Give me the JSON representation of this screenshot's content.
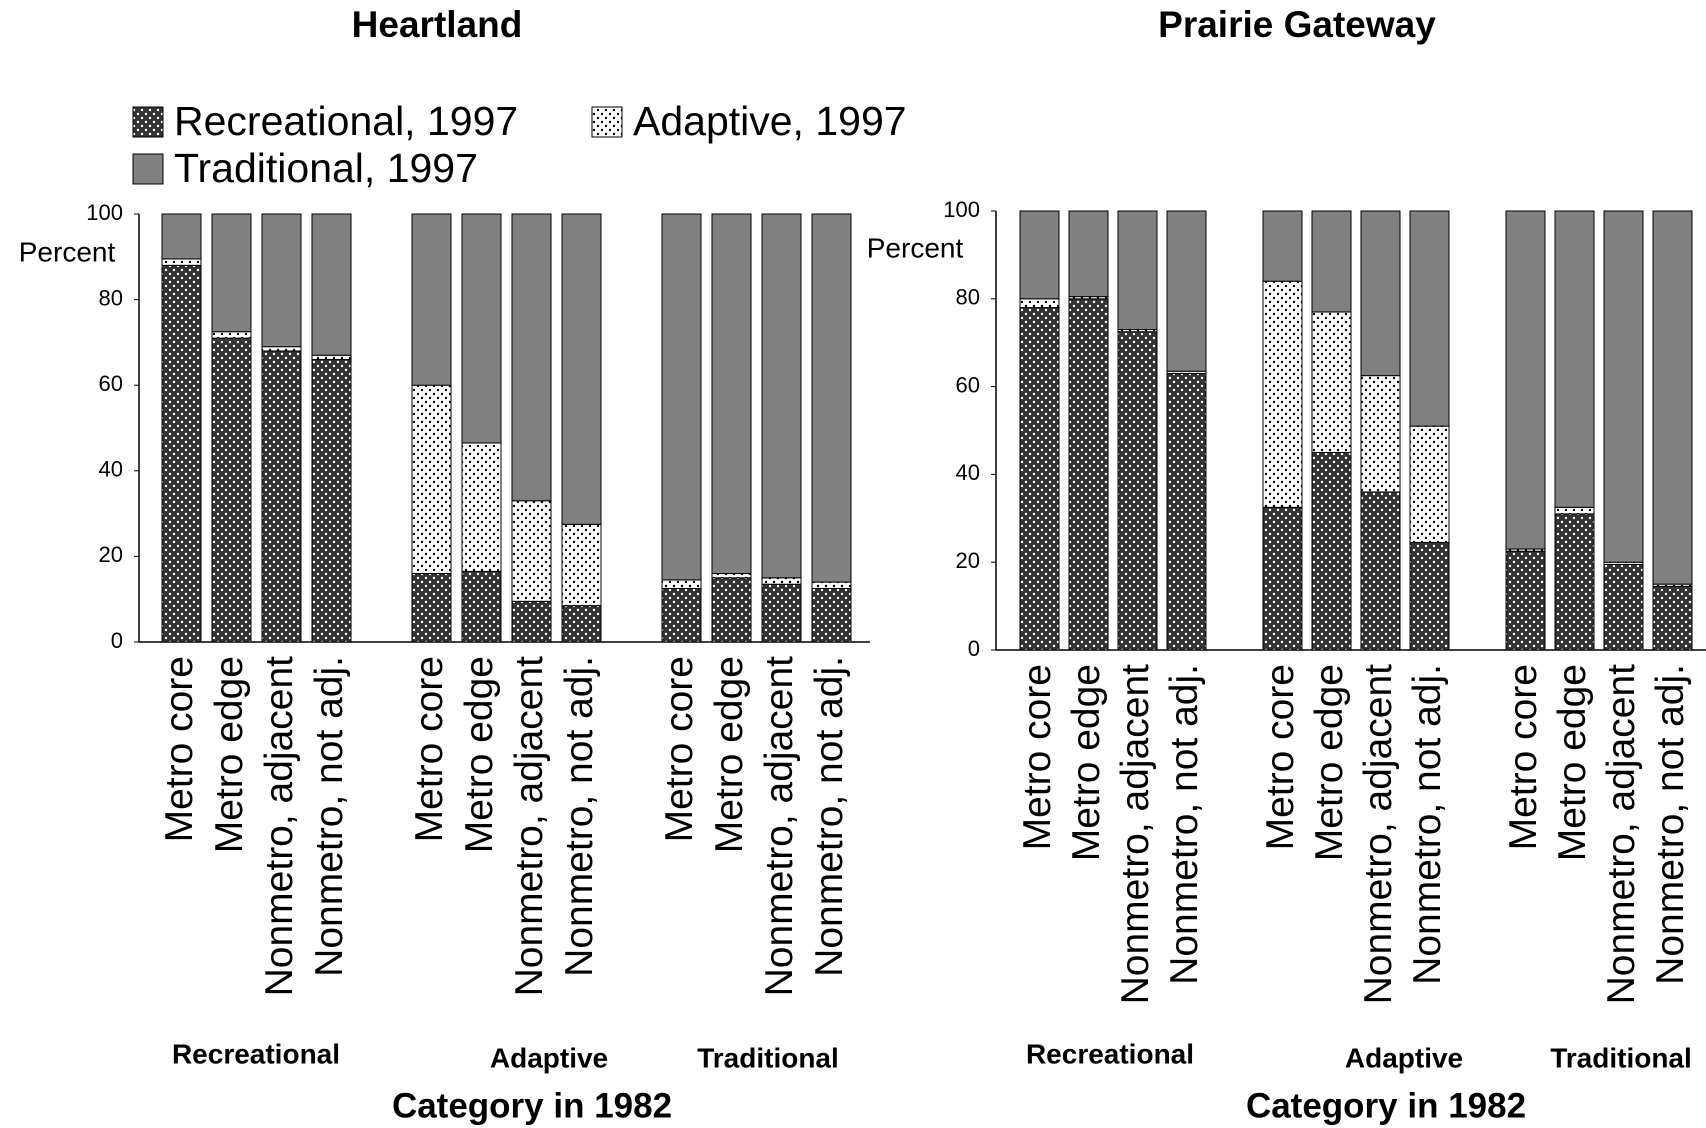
{
  "chart_data": [
    {
      "type": "stacked_bar",
      "title": "Heartland",
      "y_label": "Percent",
      "x_label": "Category in 1982",
      "groups": [
        "Recreational",
        "Adaptive",
        "Traditional"
      ],
      "categories": [
        "Metro core",
        "Metro edge",
        "Nonmetro, adjacent",
        "Nonmetro, not adj.",
        "Metro core",
        "Metro edge",
        "Nonmetro, adjacent",
        "Nonmetro, not adj.",
        "Metro core",
        "Metro edge",
        "Nonmetro, adjacent",
        "Nonmetro, not adj."
      ],
      "ylim": [
        0,
        100
      ],
      "yticks": [
        0,
        20,
        40,
        60,
        80,
        100
      ],
      "legend": "top-left",
      "series": [
        {
          "name": "Recreational, 1997",
          "color": "#333333",
          "pattern": "dots",
          "values": [
            88,
            71,
            68,
            66,
            16,
            16.5,
            9.5,
            8.5,
            12.5,
            15,
            13.5,
            12.5
          ]
        },
        {
          "name": "Adaptive, 1997",
          "color": "#ffffff",
          "pattern": "dots",
          "values": [
            1.5,
            1.5,
            1,
            1,
            44,
            30,
            23.5,
            19,
            2,
            1,
            1.5,
            1.5
          ]
        },
        {
          "name": "Traditional, 1997",
          "color": "#808080",
          "pattern": "solid",
          "values": [
            10.5,
            27.5,
            31,
            33,
            40,
            53.5,
            67,
            72.5,
            85.5,
            84,
            85,
            86
          ]
        }
      ]
    },
    {
      "type": "stacked_bar",
      "title": "Prairie Gateway",
      "y_label": "Percent",
      "x_label": "Category in 1982",
      "groups": [
        "Recreational",
        "Adaptive",
        "Traditional"
      ],
      "categories": [
        "Metro core",
        "Metro edge",
        "Nonmetro, adjacent",
        "Nonmetro, not adj.",
        "Metro core",
        "Metro edge",
        "Nonmetro, adjacent",
        "Nonmetro, not adj.",
        "Metro core",
        "Metro edge",
        "Nonmetro, adjacent",
        "Nonmetro, not adj."
      ],
      "ylim": [
        0,
        100
      ],
      "yticks": [
        0,
        20,
        40,
        60,
        80,
        100
      ],
      "series": [
        {
          "values": [
            78,
            80,
            72.5,
            63,
            32.5,
            45,
            36,
            24.5,
            22.5,
            31,
            19.5,
            14.5
          ]
        },
        {
          "values": [
            2,
            0.5,
            0.5,
            0.5,
            51.5,
            32,
            26.5,
            26.5,
            0.5,
            1.5,
            0.5,
            0.5
          ]
        },
        {
          "values": [
            20,
            19.5,
            27,
            36.5,
            16,
            23,
            37.5,
            49,
            77,
            67.5,
            80,
            85
          ]
        }
      ]
    }
  ]
}
